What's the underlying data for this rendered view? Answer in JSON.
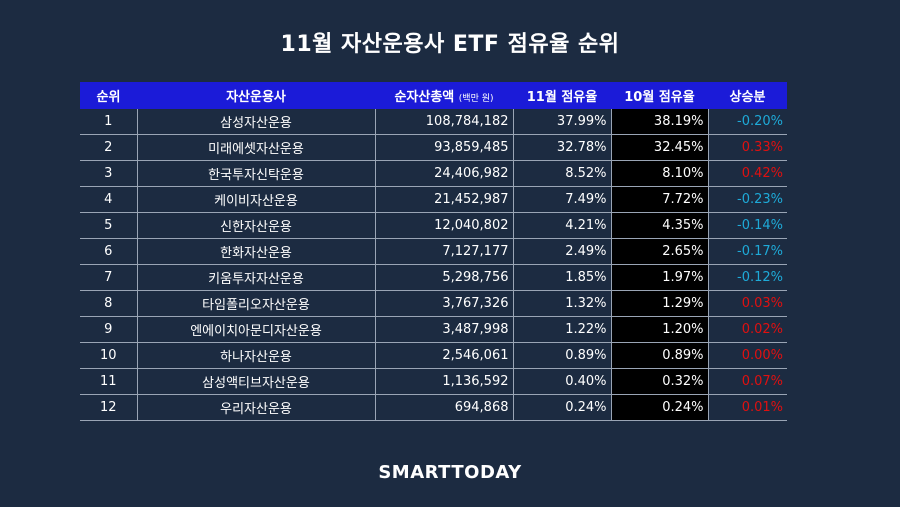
{
  "title": "11월 자산운용사 ETF 점유율 순위",
  "headers": {
    "rank": "순위",
    "company": "자산운용사",
    "assets": "순자산총액",
    "assets_unit": "(백만 원)",
    "nov": "11월 점유율",
    "oct": "10월 점유율",
    "change": "상승분"
  },
  "colors": {
    "down": "#1eaad8",
    "up": "#e01010",
    "header_bg": "#1b1bd8",
    "background": "#1c2b41"
  },
  "rows": [
    {
      "rank": "1",
      "company": "삼성자산운용",
      "assets": "108,784,182",
      "nov": "37.99%",
      "oct": "38.19%",
      "change": "-0.20%",
      "dir": "down"
    },
    {
      "rank": "2",
      "company": "미래에셋자산운용",
      "assets": "93,859,485",
      "nov": "32.78%",
      "oct": "32.45%",
      "change": "0.33%",
      "dir": "up"
    },
    {
      "rank": "3",
      "company": "한국투자신탁운용",
      "assets": "24,406,982",
      "nov": "8.52%",
      "oct": "8.10%",
      "change": "0.42%",
      "dir": "up"
    },
    {
      "rank": "4",
      "company": "케이비자산운용",
      "assets": "21,452,987",
      "nov": "7.49%",
      "oct": "7.72%",
      "change": "-0.23%",
      "dir": "down"
    },
    {
      "rank": "5",
      "company": "신한자산운용",
      "assets": "12,040,802",
      "nov": "4.21%",
      "oct": "4.35%",
      "change": "-0.14%",
      "dir": "down"
    },
    {
      "rank": "6",
      "company": "한화자산운용",
      "assets": "7,127,177",
      "nov": "2.49%",
      "oct": "2.65%",
      "change": "-0.17%",
      "dir": "down"
    },
    {
      "rank": "7",
      "company": "키움투자자산운용",
      "assets": "5,298,756",
      "nov": "1.85%",
      "oct": "1.97%",
      "change": "-0.12%",
      "dir": "down"
    },
    {
      "rank": "8",
      "company": "타임폴리오자산운용",
      "assets": "3,767,326",
      "nov": "1.32%",
      "oct": "1.29%",
      "change": "0.03%",
      "dir": "up"
    },
    {
      "rank": "9",
      "company": "엔에이치아문디자산운용",
      "assets": "3,487,998",
      "nov": "1.22%",
      "oct": "1.20%",
      "change": "0.02%",
      "dir": "up"
    },
    {
      "rank": "10",
      "company": "하나자산운용",
      "assets": "2,546,061",
      "nov": "0.89%",
      "oct": "0.89%",
      "change": "0.00%",
      "dir": "up"
    },
    {
      "rank": "11",
      "company": "삼성액티브자산운용",
      "assets": "1,136,592",
      "nov": "0.40%",
      "oct": "0.32%",
      "change": "0.07%",
      "dir": "up"
    },
    {
      "rank": "12",
      "company": "우리자산운용",
      "assets": "694,868",
      "nov": "0.24%",
      "oct": "0.24%",
      "change": "0.01%",
      "dir": "up"
    }
  ],
  "footer": "SMARTTODAY"
}
